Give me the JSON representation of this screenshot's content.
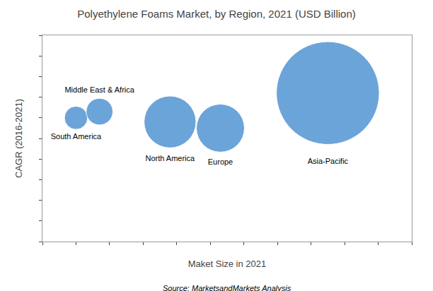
{
  "chart_data": {
    "type": "bubble",
    "title": "Polyethylene Foams Market, by Region, 2021 (USD Billion)",
    "xlabel": "Maket Size in 2021",
    "ylabel": "CAGR (2016-2021)",
    "annotations": [
      "Source: MarketsandMarkets Analysis"
    ],
    "labels": [
      "South America",
      "Middle East & Africa",
      "North America",
      "Europe",
      "Asia-Pacific"
    ],
    "x": [
      1.0,
      1.7,
      3.8,
      5.3,
      8.5
    ],
    "values": [
      6.0,
      6.3,
      5.8,
      5.5,
      7.2
    ],
    "sizes": [
      280,
      370,
      1400,
      1200,
      5500
    ],
    "color": "#5b9bd5",
    "xlim": [
      0,
      11
    ],
    "ylim": [
      0,
      10
    ],
    "xticks": [
      0,
      1,
      2,
      3,
      4,
      5,
      6,
      7,
      8,
      9,
      10,
      11
    ],
    "yticks": [
      0,
      1,
      2,
      3,
      4,
      5,
      6,
      7,
      8,
      9,
      10
    ],
    "tick_labels": false,
    "grid": false
  }
}
